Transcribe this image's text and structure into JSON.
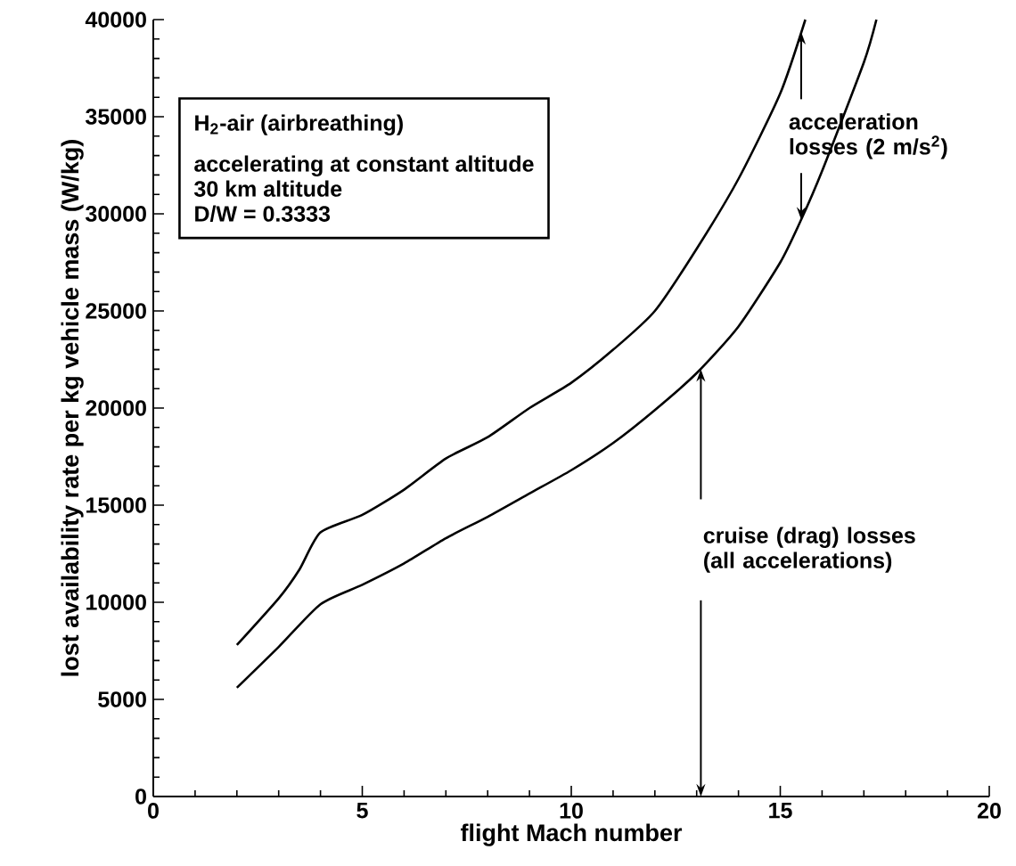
{
  "chart_data": {
    "type": "line",
    "xlabel": "flight Mach number",
    "ylabel": "lost availability rate per kg vehicle mass (W/kg)",
    "xlim": [
      0,
      20
    ],
    "xticks": [
      0,
      5,
      10,
      15,
      20
    ],
    "ylim": [
      0,
      40000
    ],
    "yticks": [
      0,
      5000,
      10000,
      15000,
      20000,
      25000,
      30000,
      35000,
      40000
    ],
    "grid": false,
    "marker": "none",
    "line_style": "solid",
    "series": [
      {
        "color": "#000000",
        "x": [
          2,
          3,
          3.5,
          4,
          5,
          6,
          7,
          8,
          9,
          10,
          11,
          12,
          13,
          14,
          15,
          15.6
        ],
        "values": [
          7800,
          10200,
          11700,
          13600,
          14500,
          15800,
          17400,
          18500,
          20000,
          21300,
          23000,
          25000,
          28200,
          31800,
          36200,
          40000
        ]
      },
      {
        "color": "#000000",
        "x": [
          2,
          3,
          4,
          5,
          6,
          7,
          8,
          9,
          10,
          11,
          12,
          13,
          14,
          15,
          15.5,
          16,
          17,
          17.3
        ],
        "values": [
          5600,
          7700,
          9900,
          10900,
          12000,
          13300,
          14400,
          15600,
          16800,
          18200,
          19900,
          21800,
          24200,
          27500,
          29700,
          32200,
          37800,
          40000
        ]
      }
    ],
    "annotations": [
      "H$_{2}$-air  (airbreathing)",
      "accelerating at constant altitude",
      "30 km altitude",
      "D/W = 0.3333",
      {
        "text": "acceleration losses (2 m/s$^{2}$)",
        "x": 15.5,
        "y": 29700
      },
      {
        "text": "cruise (drag) losses (all accelerations)",
        "x": 13.1,
        "y": 22000
      }
    ]
  }
}
